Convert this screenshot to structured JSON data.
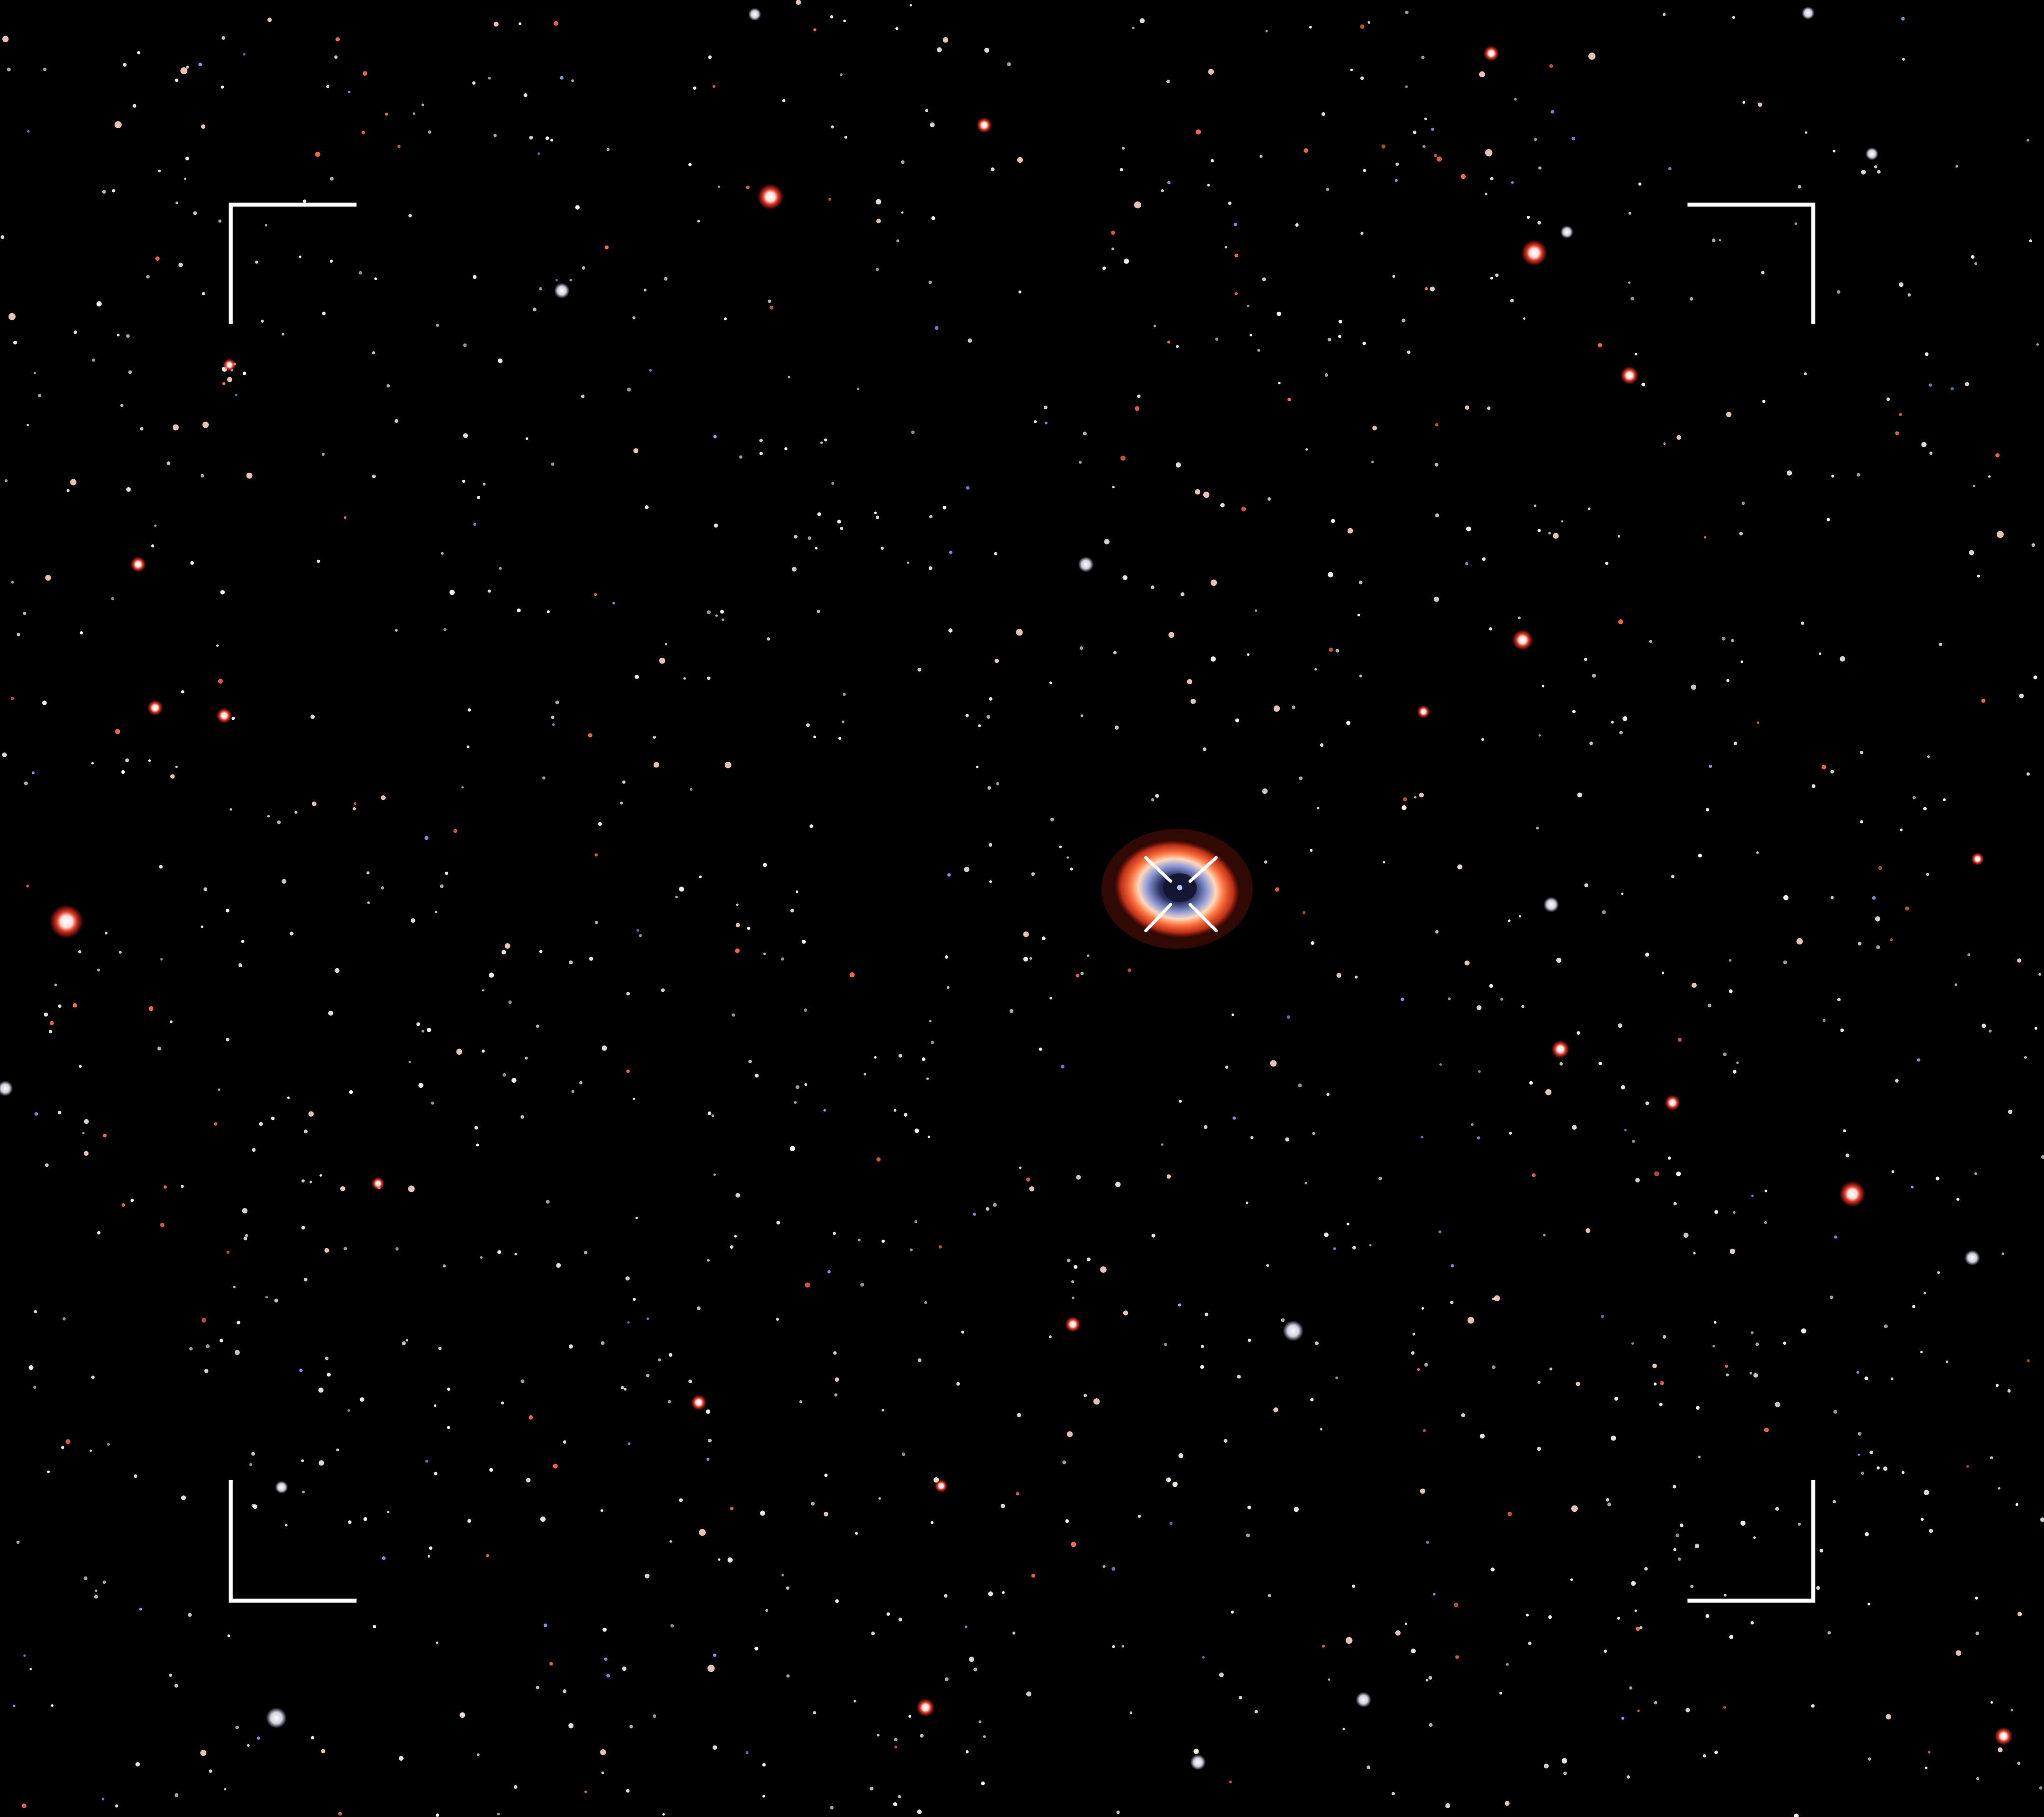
{
  "scene": {
    "subject": "ring-nebula",
    "background_color": "#000000",
    "frame_color": "#ffffff",
    "reticle_color": "#ffffff",
    "nebula_colors": {
      "outer_ring": "#ff5a2e",
      "inner_ring": "#ffd0a8",
      "inner_glow": "#9aa8ff",
      "core": "#1a1e3a"
    },
    "star_colors": [
      "#ffffff",
      "#fff2ea",
      "#ffd6c8",
      "#ff6a4a",
      "#ff3b2a",
      "#d8e2ff",
      "#8ea0ff"
    ],
    "star_field_density": "dense",
    "overlays": [
      "corner-brackets",
      "center-reticle"
    ]
  }
}
